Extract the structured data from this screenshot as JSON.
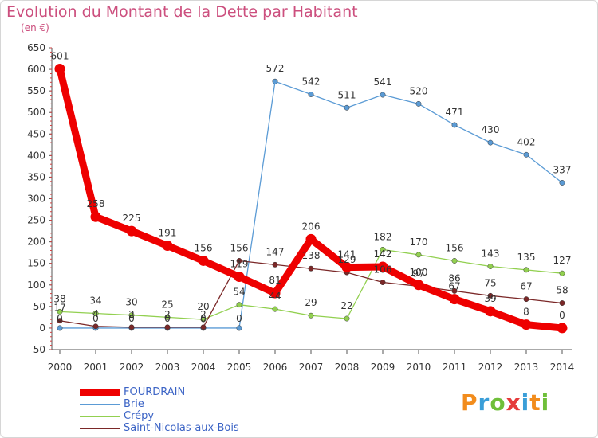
{
  "header": {
    "title": "Evolution du Montant de la Dette par Habitant",
    "unit": "(en €)"
  },
  "logo": {
    "text": "Proxiti",
    "letter_colors": [
      "#f28c1c",
      "#3a9ed8",
      "#6fbf3a",
      "#e53a3a",
      "#3a9ed8",
      "#f28c1c",
      "#6fbf3a"
    ]
  },
  "chart_data": {
    "type": "line",
    "title": "Evolution du Montant de la Dette par Habitant",
    "subtitle": "(en €)",
    "x": [
      "2000",
      "2001",
      "2002",
      "2003",
      "2004",
      "2005",
      "2006",
      "2007",
      "2008",
      "2009",
      "2010",
      "2011",
      "2012",
      "2013",
      "2014"
    ],
    "ylim": [
      -50,
      650
    ],
    "yticks": [
      -50,
      0,
      50,
      100,
      150,
      200,
      250,
      300,
      350,
      400,
      450,
      500,
      550,
      600,
      650
    ],
    "grid": false,
    "legend_position": "bottom-left",
    "series": [
      {
        "name": "FOURDRAIN",
        "color": "#ee0000",
        "values": [
          601,
          258,
          225,
          191,
          156,
          119,
          81,
          206,
          141,
          142,
          100,
          67,
          39,
          8,
          0
        ],
        "labels": [
          "601",
          "258",
          "225",
          "191",
          "156",
          "119",
          "81",
          "206",
          "141",
          "142",
          "100",
          "67",
          "39",
          "8",
          "0"
        ]
      },
      {
        "name": "Brie",
        "color": "#5b9bd5",
        "values": [
          0,
          0,
          0,
          0,
          0,
          0,
          572,
          542,
          511,
          541,
          520,
          471,
          430,
          402,
          337
        ],
        "labels": [
          "0",
          "0",
          "0",
          "0",
          "0",
          "0",
          "572",
          "542",
          "511",
          "541",
          "520",
          "471",
          "430",
          "402",
          "337"
        ]
      },
      {
        "name": "Crépy",
        "color": "#92d050",
        "values": [
          38,
          34,
          30,
          25,
          20,
          54,
          44,
          29,
          22,
          182,
          170,
          156,
          143,
          135,
          127
        ],
        "labels": [
          "38",
          "34",
          "30",
          "25",
          "20",
          "54",
          "44",
          "29",
          "22",
          "182",
          "170",
          "156",
          "143",
          "135",
          "127"
        ]
      },
      {
        "name": "Saint-Nicolas-aux-Bois",
        "color": "#7b2828",
        "values": [
          17,
          4,
          2,
          2,
          2,
          156,
          147,
          138,
          129,
          106,
          97,
          86,
          75,
          67,
          58
        ],
        "labels": [
          "17",
          "4",
          "2",
          "2",
          "2",
          "156",
          "147",
          "138",
          "129",
          "106",
          "97",
          "86",
          "75",
          "67",
          "58"
        ]
      }
    ]
  }
}
